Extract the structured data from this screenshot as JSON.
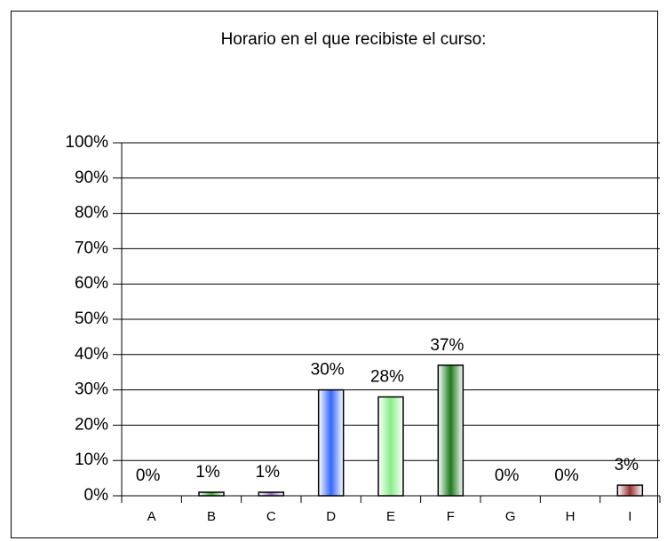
{
  "chart_data": {
    "type": "bar",
    "title": "Horario en el que recibiste el curso:",
    "categories": [
      "A",
      "B",
      "C",
      "D",
      "E",
      "F",
      "G",
      "H",
      "I"
    ],
    "values": [
      0,
      1,
      1,
      30,
      28,
      37,
      0,
      0,
      3
    ],
    "value_labels": [
      "0%",
      "1%",
      "1%",
      "30%",
      "28%",
      "37%",
      "0%",
      "0%",
      "3%"
    ],
    "colors": [
      "#3366ff",
      "#33aa33",
      "#9966cc",
      "#3366ff",
      "#88ee88",
      "#1a7a1a",
      "#3366ff",
      "#3366ff",
      "#993333"
    ],
    "ylim": [
      0,
      100
    ],
    "yticks": [
      {
        "value": 0,
        "label": "0%"
      },
      {
        "value": 10,
        "label": "10%"
      },
      {
        "value": 20,
        "label": "20%"
      },
      {
        "value": 30,
        "label": "30%"
      },
      {
        "value": 40,
        "label": "40%"
      },
      {
        "value": 50,
        "label": "50%"
      },
      {
        "value": 60,
        "label": "60%"
      },
      {
        "value": 70,
        "label": "70%"
      },
      {
        "value": 80,
        "label": "80%"
      },
      {
        "value": 90,
        "label": "90%"
      },
      {
        "value": 100,
        "label": "100%"
      }
    ],
    "grid": true
  }
}
